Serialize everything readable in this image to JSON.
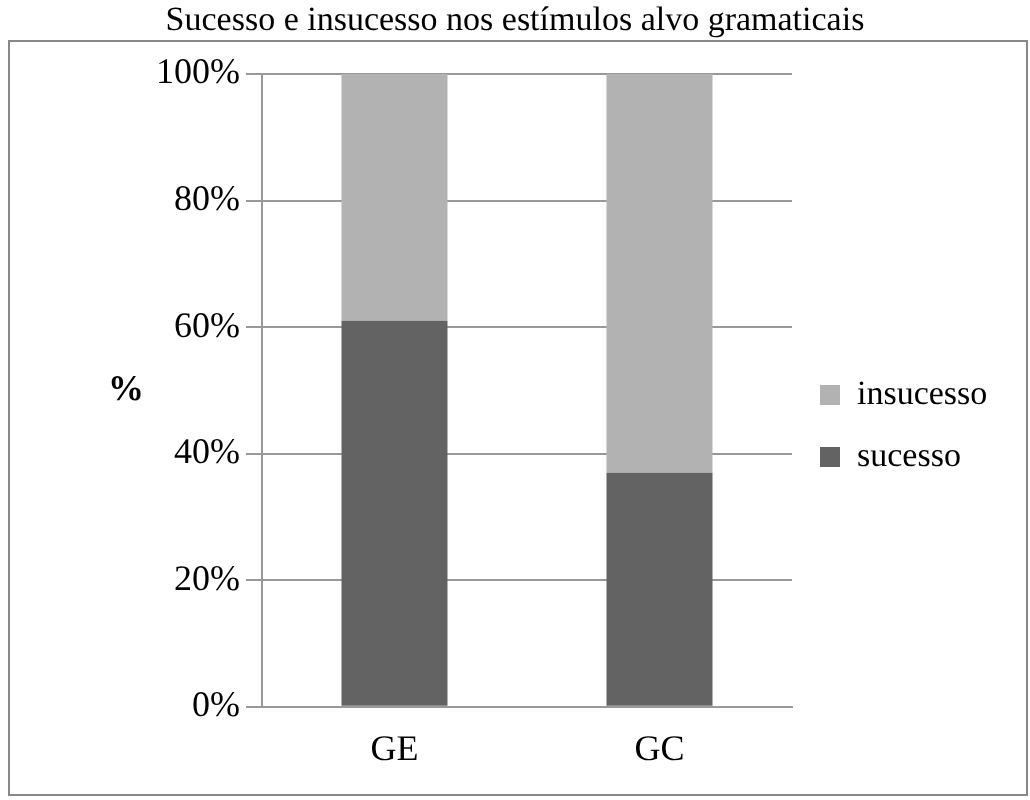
{
  "chart_data": {
    "type": "bar",
    "title": "Sucesso e insucesso nos estímulos alvo gramaticais",
    "ylabel": "%",
    "categories": [
      "GE",
      "GC"
    ],
    "series": [
      {
        "name": "sucesso",
        "color": "#636363",
        "values": [
          61,
          37
        ]
      },
      {
        "name": "insucesso",
        "color": "#b2b2b2",
        "values": [
          39,
          63
        ]
      }
    ],
    "stacked": true,
    "ylim": [
      0,
      100
    ],
    "yticks": [
      {
        "value": 0,
        "label": "0%"
      },
      {
        "value": 20,
        "label": "20%"
      },
      {
        "value": 40,
        "label": "40%"
      },
      {
        "value": 60,
        "label": "60%"
      },
      {
        "value": 80,
        "label": "80%"
      },
      {
        "value": 100,
        "label": "100%"
      }
    ],
    "grid": "y",
    "legend": "right"
  }
}
